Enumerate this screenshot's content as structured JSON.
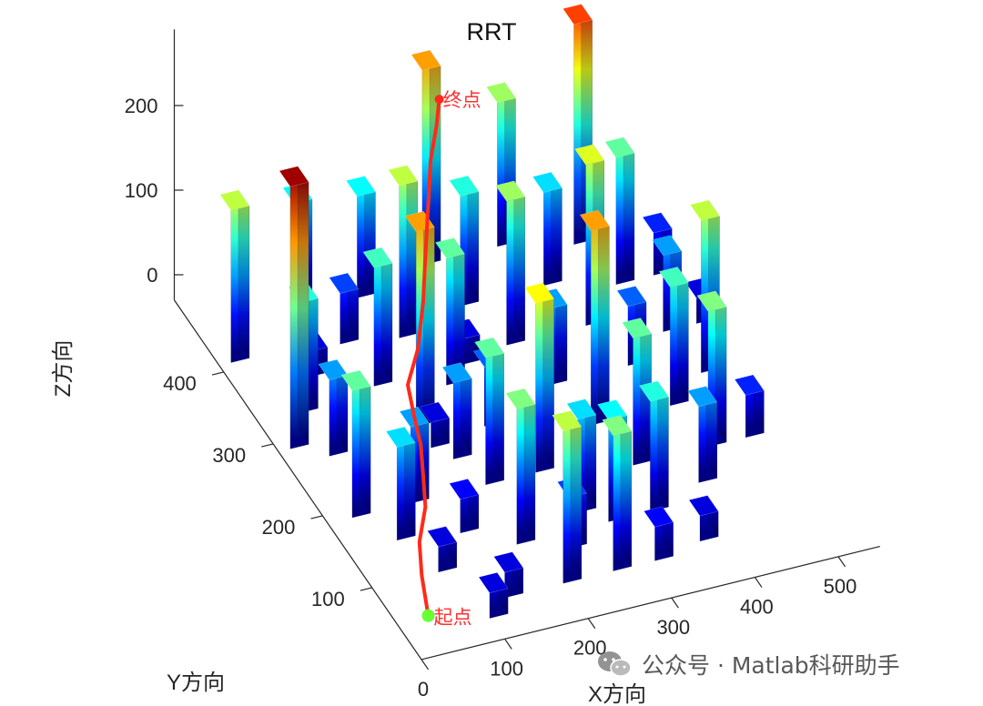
{
  "chart_data": {
    "type": "3d-bar-path",
    "title": "RRT",
    "xlabel": "X方向",
    "ylabel": "Y方向",
    "zlabel": "Z方向",
    "x_ticks": [
      0,
      100,
      200,
      300,
      400,
      500
    ],
    "y_ticks": [
      100,
      200,
      300,
      400
    ],
    "z_ticks": [
      0,
      100,
      200
    ],
    "xlim": [
      0,
      550
    ],
    "ylim": [
      0,
      500
    ],
    "zlim": [
      -30,
      290
    ],
    "colormap": "jet",
    "start_label": "起点",
    "goal_label": "终点",
    "start": [
      20,
      20,
      0
    ],
    "goal": [
      300,
      470,
      160
    ],
    "obstacles": [
      [
        25,
        420,
        150
      ],
      [
        25,
        300,
        280
      ],
      [
        60,
        340,
        100
      ],
      [
        60,
        280,
        60
      ],
      [
        95,
        380,
        0
      ],
      [
        130,
        470,
        90
      ],
      [
        150,
        410,
        30
      ],
      [
        155,
        350,
        110
      ],
      [
        170,
        290,
        200
      ],
      [
        185,
        240,
        60
      ],
      [
        200,
        460,
        90
      ],
      [
        215,
        400,
        150
      ],
      [
        230,
        330,
        120
      ],
      [
        240,
        270,
        40
      ],
      [
        260,
        200,
        170
      ],
      [
        275,
        140,
        80
      ],
      [
        290,
        480,
        200
      ],
      [
        300,
        420,
        100
      ],
      [
        320,
        360,
        140
      ],
      [
        335,
        300,
        60
      ],
      [
        350,
        240,
        200
      ],
      [
        365,
        180,
        120
      ],
      [
        380,
        480,
        140
      ],
      [
        400,
        420,
        80
      ],
      [
        415,
        360,
        160
      ],
      [
        430,
        300,
        40
      ],
      [
        445,
        240,
        110
      ],
      [
        460,
        460,
        230
      ],
      [
        475,
        400,
        120
      ],
      [
        490,
        330,
        60
      ],
      [
        500,
        270,
        150
      ],
      [
        520,
        400,
        20
      ],
      [
        110,
        200,
        60
      ],
      [
        140,
        150,
        10
      ],
      [
        190,
        120,
        130
      ],
      [
        210,
        60,
        150
      ],
      [
        240,
        100,
        30
      ],
      [
        270,
        60,
        130
      ],
      [
        300,
        120,
        90
      ],
      [
        320,
        60,
        10
      ],
      [
        350,
        120,
        100
      ],
      [
        380,
        70,
        0
      ],
      [
        140,
        60,
        0
      ],
      [
        170,
        260,
        0
      ],
      [
        90,
        110,
        0
      ],
      [
        110,
        40,
        0
      ],
      [
        240,
        420,
        20
      ],
      [
        40,
        200,
        120
      ],
      [
        70,
        160,
        80
      ],
      [
        260,
        350,
        0
      ],
      [
        200,
        200,
        120
      ],
      [
        420,
        140,
        60
      ],
      [
        455,
        180,
        130
      ],
      [
        500,
        180,
        20
      ],
      [
        530,
        330,
        0
      ]
    ],
    "path": [
      [
        20,
        20,
        0
      ],
      [
        30,
        50,
        20
      ],
      [
        45,
        80,
        30
      ],
      [
        70,
        110,
        40
      ],
      [
        85,
        140,
        50
      ],
      [
        100,
        170,
        55
      ],
      [
        110,
        200,
        60
      ],
      [
        120,
        230,
        70
      ],
      [
        150,
        260,
        80
      ],
      [
        180,
        300,
        95
      ],
      [
        200,
        330,
        110
      ],
      [
        220,
        360,
        120
      ],
      [
        240,
        390,
        130
      ],
      [
        260,
        420,
        140
      ],
      [
        285,
        450,
        150
      ],
      [
        300,
        470,
        160
      ]
    ]
  },
  "watermark": {
    "text": "公众号 · Matlab科研助手",
    "icon": "wechat-icon"
  }
}
